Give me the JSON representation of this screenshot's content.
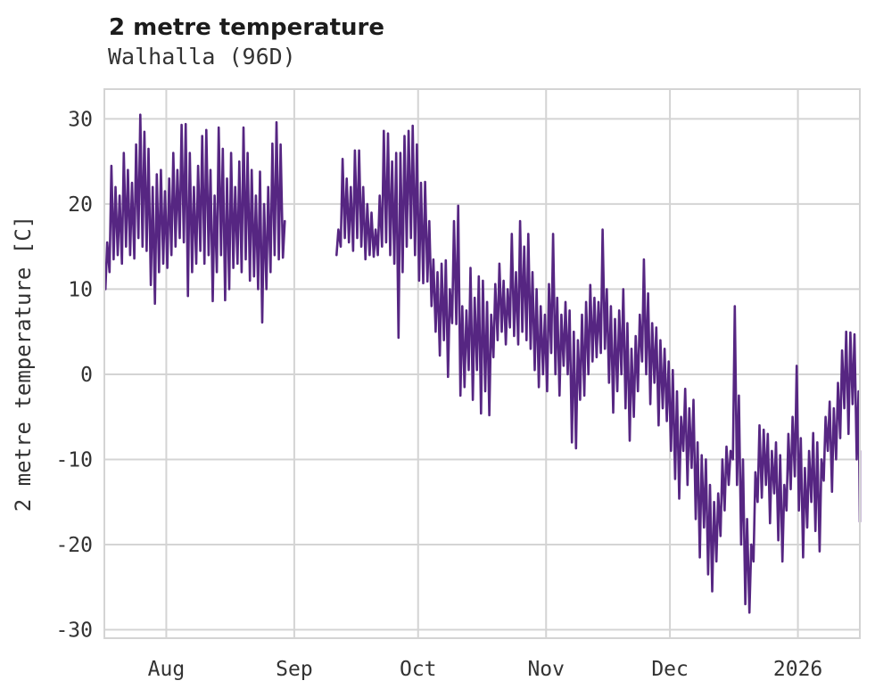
{
  "header": {
    "title": "2 metre temperature",
    "subtitle": "Walhalla (96D)"
  },
  "chart_data": {
    "type": "line",
    "title": "2 metre temperature",
    "subtitle": "Walhalla (96D)",
    "xlabel": "",
    "ylabel": "2 metre temperature [C]",
    "legend": "none",
    "grid": true,
    "series_name": "2 metre temperature",
    "line_color": "#562682",
    "grid_color": "#d4d4d4",
    "background": "#ffffff",
    "ylim": [
      -31,
      33.5
    ],
    "x_domain_days": [
      0,
      183
    ],
    "y_ticks": [
      30,
      20,
      10,
      0,
      -10,
      -20,
      -30
    ],
    "x_ticks": [
      {
        "label": "Aug",
        "day": 15
      },
      {
        "label": "Sep",
        "day": 46
      },
      {
        "label": "Oct",
        "day": 76
      },
      {
        "label": "Nov",
        "day": 107
      },
      {
        "label": "Dec",
        "day": 137
      },
      {
        "label": "2026",
        "day": 168
      }
    ],
    "gap_note": "no data for days 44-55 (late Aug to ~Sep 10), shown as nulls",
    "daily_min_max": [
      [
        10,
        15.5
      ],
      [
        12,
        24.5
      ],
      [
        13.5,
        22
      ],
      [
        14,
        21
      ],
      [
        13,
        26
      ],
      [
        15,
        24
      ],
      [
        14,
        22.5
      ],
      [
        13.6,
        27
      ],
      [
        16,
        30.5
      ],
      [
        15,
        28.5
      ],
      [
        14.5,
        26.5
      ],
      [
        10.5,
        22
      ],
      [
        8.3,
        23.5
      ],
      [
        12,
        24
      ],
      [
        13,
        21.5
      ],
      [
        12.5,
        23
      ],
      [
        14,
        26
      ],
      [
        15,
        24
      ],
      [
        16,
        29.3
      ],
      [
        15.5,
        29.4
      ],
      [
        9.2,
        26
      ],
      [
        12,
        22
      ],
      [
        13,
        24.5
      ],
      [
        14.5,
        28
      ],
      [
        13,
        28.7
      ],
      [
        14,
        24
      ],
      [
        8.6,
        21
      ],
      [
        12,
        29
      ],
      [
        14,
        26.5
      ],
      [
        8.7,
        23
      ],
      [
        10,
        26
      ],
      [
        12.5,
        22
      ],
      [
        13,
        25
      ],
      [
        12,
        29
      ],
      [
        13.5,
        26
      ],
      [
        11,
        24
      ],
      [
        11.5,
        21
      ],
      [
        10,
        23.8
      ],
      [
        6.1,
        20
      ],
      [
        10,
        22
      ],
      [
        12,
        27.1
      ],
      [
        14,
        29.6
      ],
      [
        13.5,
        27
      ],
      [
        13.7,
        18
      ],
      null,
      null,
      null,
      null,
      null,
      null,
      null,
      null,
      null,
      null,
      null,
      null,
      [
        14,
        17
      ],
      [
        15,
        25.3
      ],
      [
        16,
        23
      ],
      [
        15.5,
        22
      ],
      [
        14.5,
        26.3
      ],
      [
        16,
        26.3
      ],
      [
        15,
        22
      ],
      [
        13.5,
        20
      ],
      [
        14,
        19
      ],
      [
        13.8,
        17
      ],
      [
        14,
        21
      ],
      [
        15,
        28.6
      ],
      [
        15.5,
        28.3
      ],
      [
        14,
        25
      ],
      [
        13,
        26
      ],
      [
        4.3,
        26
      ],
      [
        12,
        28
      ],
      [
        15,
        28.6
      ],
      [
        16,
        29.2
      ],
      [
        14,
        27
      ],
      [
        11,
        22.5
      ],
      [
        10.7,
        22.6
      ],
      [
        10.9,
        18
      ],
      [
        8,
        13.5
      ],
      [
        5,
        12
      ],
      [
        2.2,
        13
      ],
      [
        4,
        13.4
      ],
      [
        -0.3,
        10
      ],
      [
        6,
        18
      ],
      [
        5.9,
        19.8
      ],
      [
        -2.5,
        8
      ],
      [
        -1.5,
        7.5
      ],
      [
        0.5,
        12.5
      ],
      [
        -3,
        9
      ],
      [
        0.5,
        11.5
      ],
      [
        -4.6,
        11
      ],
      [
        -2,
        8.5
      ],
      [
        -4.8,
        7
      ],
      [
        2,
        10.6
      ],
      [
        4,
        13
      ],
      [
        5,
        11
      ],
      [
        3.5,
        10
      ],
      [
        5.5,
        16.5
      ],
      [
        4.5,
        12
      ],
      [
        3.5,
        18
      ],
      [
        5,
        15
      ],
      [
        4,
        16.5
      ],
      [
        3,
        12
      ],
      [
        0.5,
        10
      ],
      [
        -1.5,
        8
      ],
      [
        0,
        7
      ],
      [
        -2,
        10.6
      ],
      [
        2.5,
        16.5
      ],
      [
        0,
        9
      ],
      [
        -2.5,
        7
      ],
      [
        1,
        8.5
      ],
      [
        0,
        7.5
      ],
      [
        -8,
        5
      ],
      [
        -8.7,
        4
      ],
      [
        -3,
        7
      ],
      [
        -2.5,
        8.5
      ],
      [
        0,
        10.5
      ],
      [
        1.5,
        9
      ],
      [
        2,
        8.5
      ],
      [
        2.5,
        17
      ],
      [
        3,
        10
      ],
      [
        -1,
        8
      ],
      [
        -4.5,
        6.5
      ],
      [
        -2,
        7.5
      ],
      [
        0,
        10
      ],
      [
        -4,
        6
      ],
      [
        -7.8,
        3
      ],
      [
        -5,
        4.5
      ],
      [
        -2,
        7
      ],
      [
        1.5,
        13.5
      ],
      [
        0,
        9.5
      ],
      [
        -3.5,
        6
      ],
      [
        -1,
        5.5
      ],
      [
        -6,
        4
      ],
      [
        -4,
        3
      ],
      [
        -5.5,
        1.5
      ],
      [
        -9,
        0.5
      ],
      [
        -12.3,
        -2
      ],
      [
        -14.6,
        -5
      ],
      [
        -9,
        -1.7
      ],
      [
        -13,
        -4
      ],
      [
        -11,
        -3
      ],
      [
        -17,
        -8
      ],
      [
        -21.5,
        -9.5
      ],
      [
        -18,
        -10
      ],
      [
        -23.5,
        -13
      ],
      [
        -25.5,
        -15
      ],
      [
        -22,
        -14
      ],
      [
        -19,
        -10
      ],
      [
        -16,
        -8.5
      ],
      [
        -13,
        -9
      ],
      [
        -10,
        8
      ],
      [
        -13,
        -2.5
      ],
      [
        -20,
        -10
      ],
      [
        -27,
        -17
      ],
      [
        -28,
        -20
      ],
      [
        -22,
        -11.5
      ],
      [
        -15,
        -6
      ],
      [
        -14.5,
        -6.5
      ],
      [
        -13,
        -7
      ],
      [
        -17.5,
        -9
      ],
      [
        -14,
        -8
      ],
      [
        -19.5,
        -9.5
      ],
      [
        -22,
        -13
      ],
      [
        -16,
        -7
      ],
      [
        -13.5,
        -5
      ],
      [
        -12,
        1
      ],
      [
        -16,
        -7.5
      ],
      [
        -21.5,
        -11
      ],
      [
        -18,
        -9
      ],
      [
        -15,
        -6.9
      ],
      [
        -18.4,
        -8
      ],
      [
        -20.8,
        -10
      ],
      [
        -12.5,
        -5
      ],
      [
        -9,
        -3.2
      ],
      [
        -13.8,
        -4
      ],
      [
        -10,
        -1
      ],
      [
        -7.5,
        2.8
      ],
      [
        -4,
        5
      ],
      [
        -7,
        4.9
      ],
      [
        -3.5,
        4.7
      ],
      [
        -10,
        -2
      ],
      [
        -17.3,
        -9
      ]
    ]
  },
  "layout_text": {
    "y_tick_labels": [
      "30",
      "20",
      "10",
      "0",
      "-10",
      "-20",
      "-30"
    ],
    "x_tick_labels": [
      "Aug",
      "Sep",
      "Oct",
      "Nov",
      "Dec",
      "2026"
    ]
  }
}
